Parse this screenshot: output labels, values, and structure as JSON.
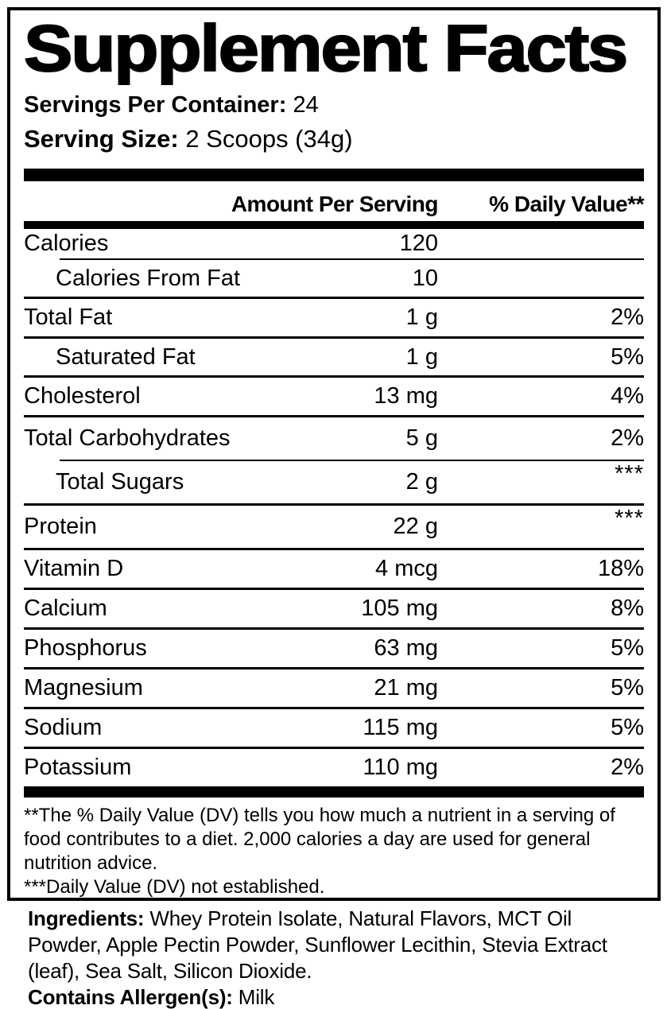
{
  "label": {
    "title": "Supplement Facts",
    "servings_per_container": {
      "label": "Servings Per Container:",
      "value": "24"
    },
    "serving_size": {
      "label": "Serving Size:",
      "value": "2 Scoops (34g)"
    },
    "columns": {
      "amount": "Amount Per Serving",
      "dv": "% Daily Value**"
    },
    "rows": [
      {
        "name": "Calories",
        "amount": "120",
        "dv": "",
        "indent": false
      },
      {
        "name": "Calories From Fat",
        "amount": "10",
        "dv": "",
        "indent": true
      },
      {
        "name": "Total Fat",
        "amount": "1 g",
        "dv": "2%",
        "indent": false
      },
      {
        "name": "Saturated Fat",
        "amount": "1 g",
        "dv": "5%",
        "indent": true
      },
      {
        "name": "Cholesterol",
        "amount": "13 mg",
        "dv": "4%",
        "indent": false
      },
      {
        "name": "Total Carbohydrates",
        "amount": "5 g",
        "dv": "2%",
        "indent": false
      },
      {
        "name": "Total Sugars",
        "amount": "2 g",
        "dv": "***",
        "indent": true
      },
      {
        "name": "Protein",
        "amount": "22 g",
        "dv": "***",
        "indent": false
      },
      {
        "name": "Vitamin D",
        "amount": "4 mcg",
        "dv": "18%",
        "indent": false
      },
      {
        "name": "Calcium",
        "amount": "105 mg",
        "dv": "8%",
        "indent": false
      },
      {
        "name": "Phosphorus",
        "amount": "63 mg",
        "dv": "5%",
        "indent": false
      },
      {
        "name": "Magnesium",
        "amount": "21 mg",
        "dv": "5%",
        "indent": false
      },
      {
        "name": "Sodium",
        "amount": "115 mg",
        "dv": "5%",
        "indent": false
      },
      {
        "name": "Potassium",
        "amount": "110 mg",
        "dv": "2%",
        "indent": false
      }
    ],
    "footnotes": [
      "**The % Daily Value (DV) tells you how much a nutrient in a serving of food contributes to a diet. 2,000 calories a day are used for general nutrition advice.",
      "***Daily Value (DV) not established."
    ]
  },
  "ingredients": {
    "label": "Ingredients:",
    "value": " Whey Protein Isolate, Natural Flavors, MCT Oil Powder, Apple Pectin Powder, Sunflower Lecithin, Stevia Extract (leaf), Sea Salt, Silicon Dioxide.",
    "allergen_label": "Contains Allergen(s):",
    "allergen_value": " Milk"
  },
  "colors": {
    "text": "#000000",
    "background": "#ffffff",
    "rule": "#000000"
  }
}
